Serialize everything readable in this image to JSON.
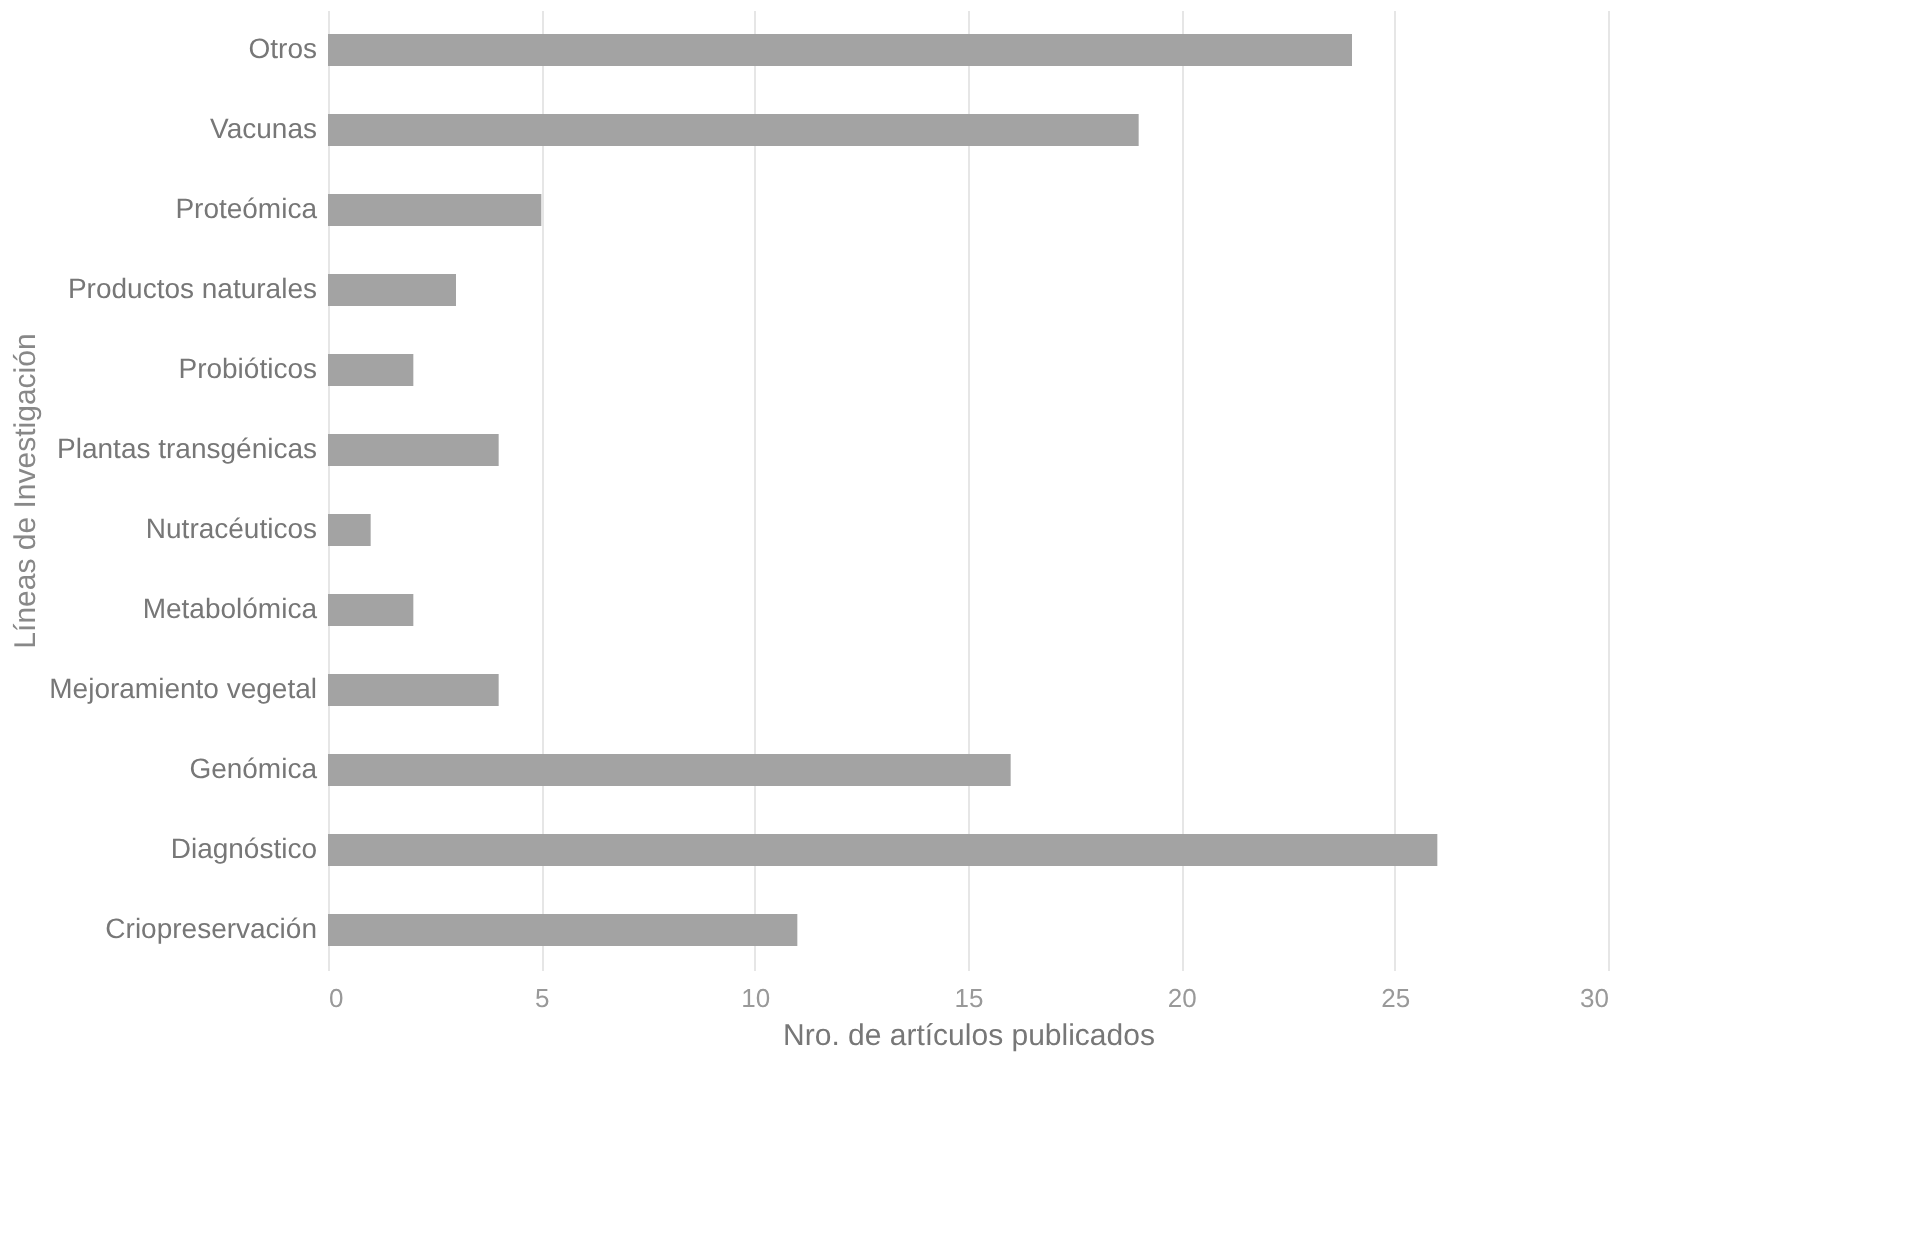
{
  "chart_data": {
    "type": "bar",
    "orientation": "horizontal",
    "xlabel": "Nro. de artículos publicados",
    "ylabel": "Líneas de Investigación",
    "categories": [
      "Otros",
      "Vacunas",
      "Proteómica",
      "Productos naturales",
      "Probióticos",
      "Plantas transgénicas",
      "Nutracéuticos",
      "Metabolómica",
      "Mejoramiento vegetal",
      "Genómica",
      "Diagnóstico",
      "Criopreservación"
    ],
    "values": [
      24,
      19,
      5,
      3,
      2,
      4,
      1,
      2,
      4,
      16,
      26,
      11
    ],
    "color": "#a3a3a3",
    "xlim": [
      0,
      30
    ],
    "xticks": [
      0,
      5,
      10,
      15,
      20,
      25,
      30
    ],
    "grid": "x"
  }
}
